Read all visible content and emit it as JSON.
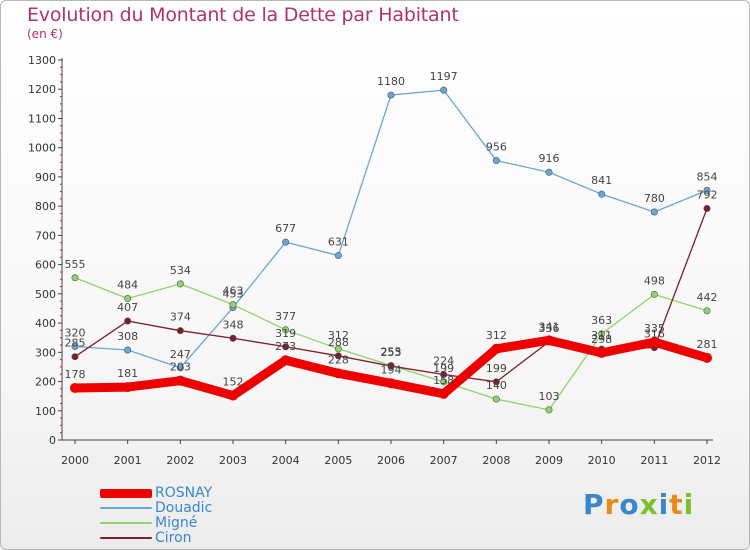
{
  "header": {
    "title": "Evolution du Montant de la Dette par Habitant",
    "subtitle": "(en €)"
  },
  "logo": {
    "text": "Proxiti",
    "letter_colors": [
      "#3a86c8",
      "#e8891c",
      "#3a86c8",
      "#7bbf2a",
      "#3a86c8",
      "#e8891c",
      "#7bbf2a"
    ]
  },
  "chart_data": {
    "type": "line",
    "title": "Evolution du Montant de la Dette par Habitant",
    "subtitle": "(en €)",
    "x": [
      "2000",
      "2001",
      "2002",
      "2003",
      "2004",
      "2005",
      "2006",
      "2007",
      "2008",
      "2009",
      "2010",
      "2011",
      "2012"
    ],
    "y_ticks": [
      "0",
      "100",
      "200",
      "300",
      "400",
      "500",
      "600",
      "700",
      "800",
      "900",
      "1000",
      "1100",
      "1200",
      "1300"
    ],
    "ylim": [
      0,
      1300
    ],
    "grid": false,
    "legend_position": "bottom-left",
    "series": [
      {
        "name": "ROSNAY",
        "color": "#ee0000",
        "values": [
          178,
          181,
          203,
          152,
          273,
          228,
          194,
          158,
          312,
          341,
          298,
          335,
          281
        ],
        "labels": [
          "178",
          "181",
          "203",
          "152",
          "273",
          "228",
          "194",
          "158",
          "312",
          "341",
          "298",
          "335",
          "281"
        ]
      },
      {
        "name": "Douadic",
        "color": "#6aa6d6",
        "values": [
          320,
          308,
          247,
          453,
          677,
          631,
          1180,
          1197,
          956,
          916,
          841,
          780,
          854
        ],
        "labels": [
          "320",
          "308",
          "247",
          "453",
          "677",
          "631",
          "1180",
          "1197",
          "956",
          "916",
          "841",
          "780",
          "854"
        ]
      },
      {
        "name": "Migné",
        "color": "#8ed46a",
        "values": [
          555,
          484,
          534,
          463,
          377,
          312,
          255,
          199,
          140,
          103,
          363,
          498,
          442
        ],
        "labels": [
          "555",
          "484",
          "534",
          "463",
          "377",
          "312",
          "255",
          "199",
          "140",
          "103",
          "363",
          "498",
          "442"
        ]
      },
      {
        "name": "Ciron",
        "color": "#7b1f2a",
        "values": [
          285,
          407,
          374,
          348,
          319,
          288,
          253,
          224,
          199,
          336,
          311,
          316,
          792
        ],
        "labels": [
          "285",
          "407",
          "374",
          "348",
          "319",
          "288",
          "253",
          "224",
          "199",
          "336",
          "311",
          "316",
          "792"
        ]
      }
    ]
  }
}
